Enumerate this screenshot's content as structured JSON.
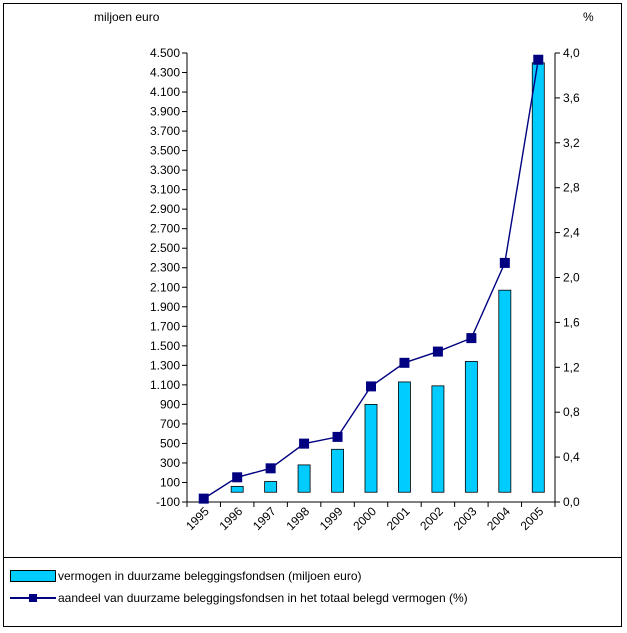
{
  "chart_data": {
    "type": "bar+line",
    "categories": [
      "1995",
      "1996",
      "1997",
      "1998",
      "1999",
      "2000",
      "2001",
      "2002",
      "2003",
      "2004",
      "2005"
    ],
    "series": [
      {
        "name": "vermogen in duurzame beleggingsfondsen (miljoen euro)",
        "type": "bar",
        "axis": "left",
        "values": [
          0,
          60,
          110,
          280,
          440,
          900,
          1130,
          1090,
          1340,
          2070,
          4400
        ]
      },
      {
        "name": "aandeel van duurzame beleggingsfondsen in het totaal belegd vermogen (%)",
        "type": "line",
        "axis": "right",
        "values": [
          0.03,
          0.22,
          0.3,
          0.52,
          0.58,
          1.03,
          1.24,
          1.34,
          1.46,
          2.13,
          3.94
        ]
      }
    ],
    "y_left": {
      "label": "miljoen euro",
      "min": -100,
      "max": 4500,
      "ticks": [
        -100,
        100,
        300,
        500,
        700,
        900,
        1100,
        1300,
        1500,
        1700,
        1900,
        2100,
        2300,
        2500,
        2700,
        2900,
        3100,
        3300,
        3500,
        3700,
        3900,
        4100,
        4300,
        4500
      ],
      "tick_labels": [
        "-100",
        "100",
        "300",
        "500",
        "700",
        "900",
        "1.100",
        "1.300",
        "1.500",
        "1.700",
        "1.900",
        "2.100",
        "2.300",
        "2.500",
        "2.700",
        "2.900",
        "3.100",
        "3.300",
        "3.500",
        "3.700",
        "3.900",
        "4.100",
        "4.300",
        "4.500"
      ]
    },
    "y_right": {
      "label": "%",
      "min": 0,
      "max": 4.0,
      "ticks": [
        0,
        0.4,
        0.8,
        1.2,
        1.6,
        2.0,
        2.4,
        2.8,
        3.2,
        3.6,
        4.0
      ],
      "tick_labels": [
        "0,0",
        "0,4",
        "0,8",
        "1,2",
        "1,6",
        "2,0",
        "2,4",
        "2,8",
        "3,2",
        "3,6",
        "4,0"
      ]
    },
    "grid": false,
    "legend": "bottom",
    "colors": {
      "bar": "#00ccff",
      "line": "#000080"
    }
  }
}
